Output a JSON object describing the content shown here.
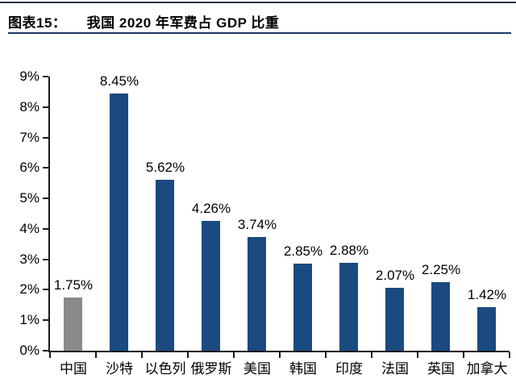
{
  "header": {
    "label": "图表15：",
    "title": "我国 2020 年军费占 GDP 比重"
  },
  "chart_data": {
    "type": "bar",
    "title": "我国 2020 年军费占 GDP 比重",
    "categories": [
      "中国",
      "沙特",
      "以色列",
      "俄罗斯",
      "美国",
      "韩国",
      "印度",
      "法国",
      "英国",
      "加拿大"
    ],
    "values": [
      1.75,
      8.45,
      5.62,
      4.26,
      3.74,
      2.85,
      2.88,
      2.07,
      2.25,
      1.42
    ],
    "value_labels": [
      "1.75%",
      "8.45%",
      "5.62%",
      "4.26%",
      "3.74%",
      "2.85%",
      "2.88%",
      "2.07%",
      "2.25%",
      "1.42%"
    ],
    "ylim": [
      0,
      9
    ],
    "ytick_labels": [
      "0%",
      "1%",
      "2%",
      "3%",
      "4%",
      "5%",
      "6%",
      "7%",
      "8%",
      "9%"
    ],
    "bar_colors": [
      "#8a8a8a",
      "#1a4a80",
      "#1a4a80",
      "#1a4a80",
      "#1a4a80",
      "#1a4a80",
      "#1a4a80",
      "#1a4a80",
      "#1a4a80",
      "#1a4a80"
    ],
    "highlight_color": "#8a8a8a",
    "default_color": "#1a4a80",
    "xlabel": "",
    "ylabel": "",
    "grid": false,
    "legend": null
  },
  "colors": {
    "accent_rule": "#1f3864",
    "axis": "#1a1a1a",
    "text": "#000000"
  }
}
